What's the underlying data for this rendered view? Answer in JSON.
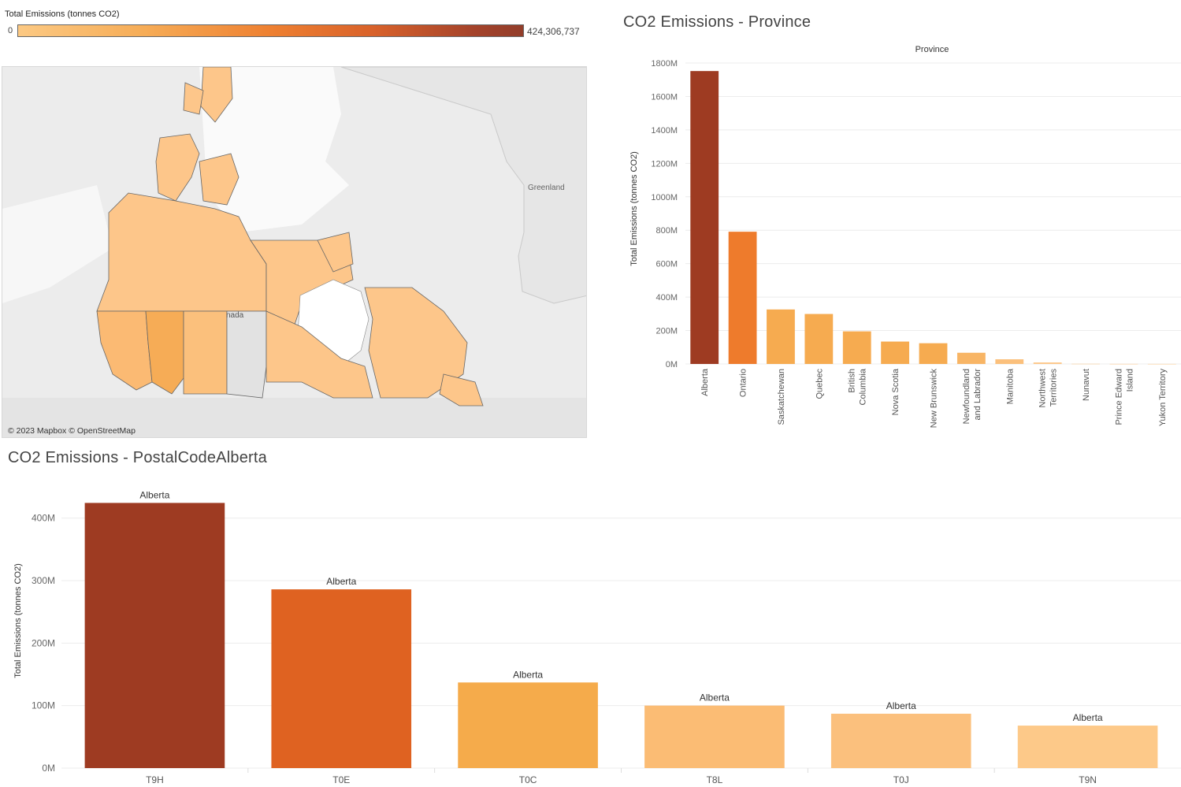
{
  "legend": {
    "title": "Total Emissions (tonnes CO2)",
    "min_label": "0",
    "max_label": "424,306,737",
    "colors": [
      "#fcc983",
      "#f6ac56",
      "#ee8031",
      "#d9622a",
      "#a5432a",
      "#923d2a"
    ]
  },
  "map": {
    "greenland_label": "Greenland",
    "partial_label": "nada",
    "credit": "© 2023 Mapbox © OpenStreetMap"
  },
  "chart_data": [
    {
      "type": "bar",
      "title": "CO2 Emissions - Province",
      "column_header": "Province",
      "ylabel": "Total Emissions (tonnes CO2)",
      "xlabel": "",
      "ylim": [
        0,
        1800
      ],
      "yticks": [
        "0M",
        "200M",
        "400M",
        "600M",
        "800M",
        "1000M",
        "1200M",
        "1400M",
        "1600M",
        "1800M"
      ],
      "categories": [
        [
          "Alberta"
        ],
        [
          "Ontario"
        ],
        [
          "Saskatchewan"
        ],
        [
          "Quebec"
        ],
        [
          "British",
          "Columbia"
        ],
        [
          "Nova Scotia"
        ],
        [
          "New Brunswick"
        ],
        [
          "Newfoundland",
          "and Labrador"
        ],
        [
          "Manitoba"
        ],
        [
          "Northwest",
          "Territories"
        ],
        [
          "Nunavut"
        ],
        [
          "Prince Edward",
          "Island"
        ],
        [
          "Yukon Territory"
        ]
      ],
      "values": [
        1752,
        791,
        326,
        299,
        195,
        134,
        124,
        67,
        28,
        9,
        1,
        0.5,
        0.3
      ],
      "colors": [
        "#9e3b22",
        "#ee7b2c",
        "#f6ab50",
        "#f6ab50",
        "#f6ab50",
        "#f6ab50",
        "#f6ab50",
        "#f8b565",
        "#fbc07c",
        "#fdc789",
        "#fdc789",
        "#fdc789",
        "#fdc789"
      ],
      "grid": true
    },
    {
      "type": "bar",
      "title": "CO2 Emissions - PostalCodeAlberta",
      "ylabel": "Total Emissions (tonnes CO2)",
      "xlabel": "",
      "ylim": [
        0,
        450
      ],
      "yticks": [
        "0M",
        "100M",
        "200M",
        "300M",
        "400M"
      ],
      "categories": [
        "T9H",
        "T0E",
        "T0C",
        "T8L",
        "T0J",
        "T9N"
      ],
      "values": [
        424.3,
        286,
        137,
        100,
        87,
        68
      ],
      "data_labels": [
        "Alberta",
        "Alberta",
        "Alberta",
        "Alberta",
        "Alberta",
        "Alberta"
      ],
      "colors": [
        "#9e3b22",
        "#df6221",
        "#f5ab4b",
        "#fbbc74",
        "#fbc07d",
        "#fdc989"
      ],
      "grid": true
    }
  ]
}
